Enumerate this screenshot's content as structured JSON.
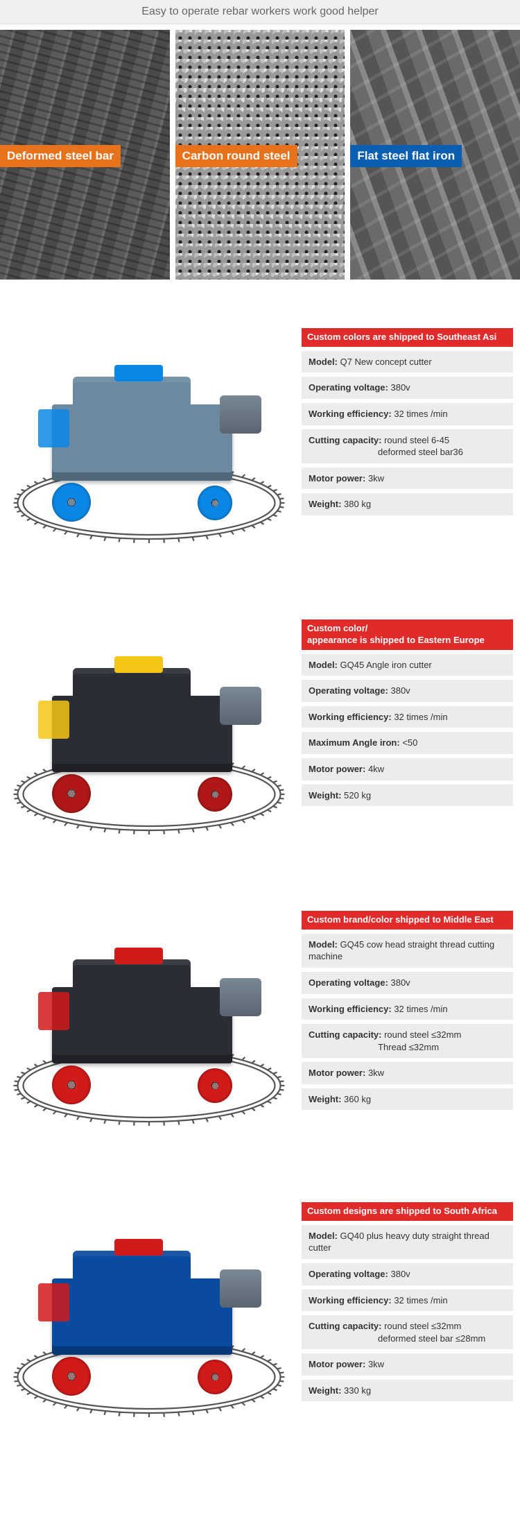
{
  "header": {
    "tagline": "Easy to operate rebar workers work good helper"
  },
  "materials": [
    {
      "label": "Deformed steel bar",
      "label_color": "#e8711c",
      "texture": "rebar"
    },
    {
      "label": "Carbon round steel",
      "label_color": "#e8711c",
      "texture": "round"
    },
    {
      "label": "Flat steel flat iron",
      "label_color": "#0b5fb3",
      "texture": "flat"
    }
  ],
  "products": [
    {
      "header": "Custom colors are shipped to Southeast Asi",
      "header_bg": "#e12b2b",
      "machine": {
        "body_color": "#6b8aa0",
        "accent_color": "#0a87e6",
        "wheel_color": "#0a87e6",
        "top_color": "#0a87e6"
      },
      "specs": [
        {
          "label": "Model:",
          "value": "Q7 New concept cutter"
        },
        {
          "label": "Operating voltage:",
          "value": "380v"
        },
        {
          "label": "Working efficiency:",
          "value": "32 times /min"
        },
        {
          "label": "Cutting capacity:",
          "value": "round steel 6-45",
          "value2": "deformed steel bar36"
        },
        {
          "label": "Motor power:",
          "value": "3kw"
        },
        {
          "label": "Weight:",
          "value": "380 kg"
        }
      ]
    },
    {
      "header": "Custom color/\nappearance is shipped to Eastern Europe",
      "header_bg": "#e12b2b",
      "machine": {
        "body_color": "#2a2d33",
        "accent_color": "#f5c518",
        "wheel_color": "#b01818",
        "top_color": "#f5c518"
      },
      "specs": [
        {
          "label": "Model:",
          "value": "GQ45 Angle iron cutter"
        },
        {
          "label": "Operating voltage:",
          "value": "380v"
        },
        {
          "label": "Working efficiency:",
          "value": "32 times /min"
        },
        {
          "label": "Maximum Angle iron:",
          "value": "<50"
        },
        {
          "label": "Motor power:",
          "value": "4kw"
        },
        {
          "label": "Weight:",
          "value": "520 kg"
        }
      ]
    },
    {
      "header": "Custom brand/color shipped to Middle East",
      "header_bg": "#e12b2b",
      "machine": {
        "body_color": "#2a2d33",
        "accent_color": "#d11a1a",
        "wheel_color": "#d11a1a",
        "top_color": "#d11a1a"
      },
      "specs": [
        {
          "label": "Model:",
          "value": "GQ45 cow head straight thread cutting machine"
        },
        {
          "label": "Operating voltage:",
          "value": "380v"
        },
        {
          "label": "Working efficiency:",
          "value": "32 times /min"
        },
        {
          "label": "Cutting capacity:",
          "value": "round steel ≤32mm",
          "value2": "Thread ≤32mm"
        },
        {
          "label": "Motor power:",
          "value": "3kw"
        },
        {
          "label": "Weight:",
          "value": "360 kg"
        }
      ]
    },
    {
      "header": "Custom designs are shipped to South Africa",
      "header_bg": "#e12b2b",
      "machine": {
        "body_color": "#0a4aa0",
        "accent_color": "#d11a1a",
        "wheel_color": "#d11a1a",
        "top_color": "#d11a1a"
      },
      "specs": [
        {
          "label": "Model:",
          "value": "GQ40 plus heavy duty straight thread cutter"
        },
        {
          "label": "Operating voltage:",
          "value": "380v"
        },
        {
          "label": "Working efficiency:",
          "value": "32 times /min"
        },
        {
          "label": "Cutting capacity:",
          "value": "round steel ≤32mm",
          "value2": "deformed steel bar ≤28mm"
        },
        {
          "label": "Motor power:",
          "value": "3kw"
        },
        {
          "label": "Weight:",
          "value": "330 kg"
        }
      ]
    }
  ],
  "track": {
    "stroke_color": "#555",
    "stroke_width": 2.2,
    "tick_spacing": 14
  }
}
